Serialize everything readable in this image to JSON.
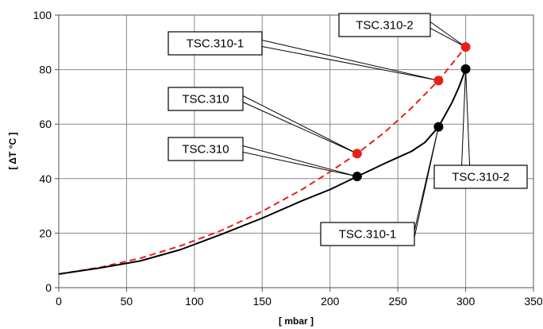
{
  "chart_data": {
    "type": "line",
    "xlabel": "[ mbar ]",
    "ylabel": "[ ΔT °C ]",
    "xlim": [
      0,
      350
    ],
    "ylim": [
      0,
      100
    ],
    "xticks": [
      0,
      50,
      100,
      150,
      200,
      250,
      300,
      350
    ],
    "yticks": [
      0,
      20,
      40,
      60,
      80,
      100
    ],
    "grid": true,
    "series": [
      {
        "style": "dashed",
        "color": "#e8201a",
        "x": [
          0,
          30,
          60,
          90,
          120,
          150,
          180,
          200,
          220,
          240,
          260,
          280,
          300
        ],
        "y": [
          5.0,
          7.4,
          10.8,
          15.4,
          21.0,
          28.0,
          36.2,
          42.5,
          49.2,
          56.9,
          65.9,
          76.0,
          88.3
        ]
      },
      {
        "style": "solid",
        "color": "#000000",
        "x": [
          0,
          30,
          60,
          90,
          120,
          150,
          180,
          200,
          220,
          240,
          260,
          270,
          280,
          290,
          295,
          300
        ],
        "y": [
          5.0,
          7.2,
          9.8,
          14.0,
          19.6,
          25.5,
          32.0,
          36.0,
          40.8,
          45.5,
          50.0,
          53.3,
          59.0,
          68.0,
          73.5,
          80.2
        ]
      }
    ],
    "markers": [
      {
        "x": 220,
        "y": 49.2,
        "color": "#e8201a"
      },
      {
        "x": 280,
        "y": 76.0,
        "color": "#e8201a"
      },
      {
        "x": 300,
        "y": 88.3,
        "color": "#e8201a"
      },
      {
        "x": 220,
        "y": 40.8,
        "color": "#000000"
      },
      {
        "x": 280,
        "y": 59.0,
        "color": "#000000"
      },
      {
        "x": 300,
        "y": 80.2,
        "color": "#000000"
      }
    ],
    "annotations": [
      {
        "text": "TSC.310-2",
        "target": {
          "x": 300,
          "y": 88.3
        },
        "color": "#e8201a"
      },
      {
        "text": "TSC.310-1",
        "target": {
          "x": 280,
          "y": 76.0
        },
        "color": "#e8201a"
      },
      {
        "text": "TSC.310",
        "target": {
          "x": 220,
          "y": 49.2
        },
        "color": "#e8201a"
      },
      {
        "text": "TSC.310",
        "target": {
          "x": 220,
          "y": 40.8
        },
        "color": "#000000"
      },
      {
        "text": "TSC.310-2",
        "target": {
          "x": 300,
          "y": 80.2
        },
        "color": "#000000"
      },
      {
        "text": "TSC.310-1",
        "target": {
          "x": 280,
          "y": 59.0
        },
        "color": "#000000"
      }
    ]
  }
}
